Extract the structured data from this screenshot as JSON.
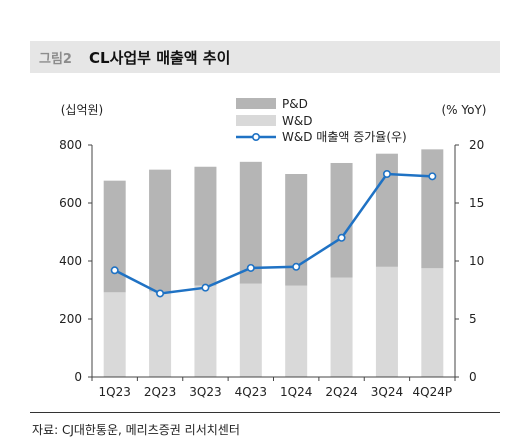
{
  "header": {
    "figure_label": "그림2",
    "title": "CL사업부 매출액 추이"
  },
  "source": "자료: CJ대한통운, 메리츠증권 리서치센터",
  "colors": {
    "pd_bar": "#b5b5b5",
    "wd_bar": "#d9d9d9",
    "growth_line": "#1f72c4",
    "title_bg": "#e6e6e6"
  },
  "chart_data": {
    "type": "bar",
    "stacked": true,
    "categories": [
      "1Q23",
      "2Q23",
      "3Q23",
      "4Q23",
      "1Q24",
      "2Q24",
      "3Q24",
      "4Q24P"
    ],
    "series": [
      {
        "name": "P&D",
        "type": "bar",
        "axis": "left",
        "values": [
          385,
          420,
          410,
          420,
          385,
          395,
          390,
          410
        ]
      },
      {
        "name": "W&D",
        "type": "bar",
        "axis": "left",
        "values": [
          292,
          295,
          315,
          322,
          315,
          343,
          380,
          375
        ]
      },
      {
        "name": "W&D 매출액 증가율(우)",
        "type": "line",
        "axis": "right",
        "values": [
          9.2,
          7.2,
          7.7,
          9.4,
          9.5,
          12.0,
          17.5,
          17.3
        ]
      }
    ],
    "y_left": {
      "label": "(십억원)",
      "min": 0,
      "max": 800,
      "ticks": [
        0,
        200,
        400,
        600,
        800
      ]
    },
    "y_right": {
      "label": "(% YoY)",
      "min": 0,
      "max": 20,
      "ticks": [
        0,
        5,
        10,
        15,
        20
      ]
    },
    "grid": false,
    "legend": "top-center"
  }
}
